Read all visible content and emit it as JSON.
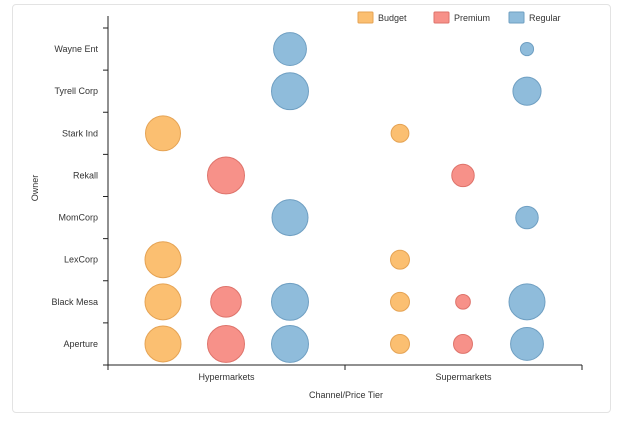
{
  "chart_data": {
    "type": "scatter",
    "subtype": "bubble",
    "title": "",
    "xlabel": "Channel/Price Tier",
    "ylabel": "Owner",
    "x_categories": [
      "Hypermarkets",
      "Supermarkets"
    ],
    "y_categories": [
      "Aperture",
      "Black Mesa",
      "LexCorp",
      "MomCorp",
      "Rekall",
      "Stark Ind",
      "Tyrell Corp",
      "Wayne Ent"
    ],
    "legend_position": "top-right",
    "grid": false,
    "series": [
      {
        "name": "Budget",
        "color": "#fbbf71",
        "stroke": "#e5a354",
        "points": [
          {
            "x": "Hypermarkets",
            "y": "Aperture",
            "size": 9
          },
          {
            "x": "Hypermarkets",
            "y": "Black Mesa",
            "size": 9
          },
          {
            "x": "Hypermarkets",
            "y": "LexCorp",
            "size": 9
          },
          {
            "x": "Hypermarkets",
            "y": "Stark Ind",
            "size": 8.5
          },
          {
            "x": "Supermarkets",
            "y": "Aperture",
            "size": 2.5
          },
          {
            "x": "Supermarkets",
            "y": "Black Mesa",
            "size": 2.5
          },
          {
            "x": "Supermarkets",
            "y": "LexCorp",
            "size": 2.5
          },
          {
            "x": "Supermarkets",
            "y": "Stark Ind",
            "size": 2.2
          }
        ]
      },
      {
        "name": "Premium",
        "color": "#f79189",
        "stroke": "#de736b",
        "points": [
          {
            "x": "Hypermarkets",
            "y": "Aperture",
            "size": 9.5
          },
          {
            "x": "Hypermarkets",
            "y": "Black Mesa",
            "size": 6.5
          },
          {
            "x": "Hypermarkets",
            "y": "Rekall",
            "size": 9.5
          },
          {
            "x": "Supermarkets",
            "y": "Aperture",
            "size": 2.5
          },
          {
            "x": "Supermarkets",
            "y": "Black Mesa",
            "size": 1.5
          },
          {
            "x": "Supermarkets",
            "y": "Rekall",
            "size": 3.5
          }
        ]
      },
      {
        "name": "Regular",
        "color": "#8fbcdb",
        "stroke": "#6f9fc2",
        "points": [
          {
            "x": "Hypermarkets",
            "y": "Aperture",
            "size": 9.5
          },
          {
            "x": "Hypermarkets",
            "y": "Black Mesa",
            "size": 9.5
          },
          {
            "x": "Hypermarkets",
            "y": "MomCorp",
            "size": 9
          },
          {
            "x": "Hypermarkets",
            "y": "Tyrell Corp",
            "size": 9.5
          },
          {
            "x": "Hypermarkets",
            "y": "Wayne Ent",
            "size": 7.5
          },
          {
            "x": "Supermarkets",
            "y": "Aperture",
            "size": 7.5
          },
          {
            "x": "Supermarkets",
            "y": "Black Mesa",
            "size": 9
          },
          {
            "x": "Supermarkets",
            "y": "MomCorp",
            "size": 3.5
          },
          {
            "x": "Supermarkets",
            "y": "Tyrell Corp",
            "size": 5.5
          },
          {
            "x": "Supermarkets",
            "y": "Wayne Ent",
            "size": 1.2
          }
        ]
      }
    ]
  }
}
